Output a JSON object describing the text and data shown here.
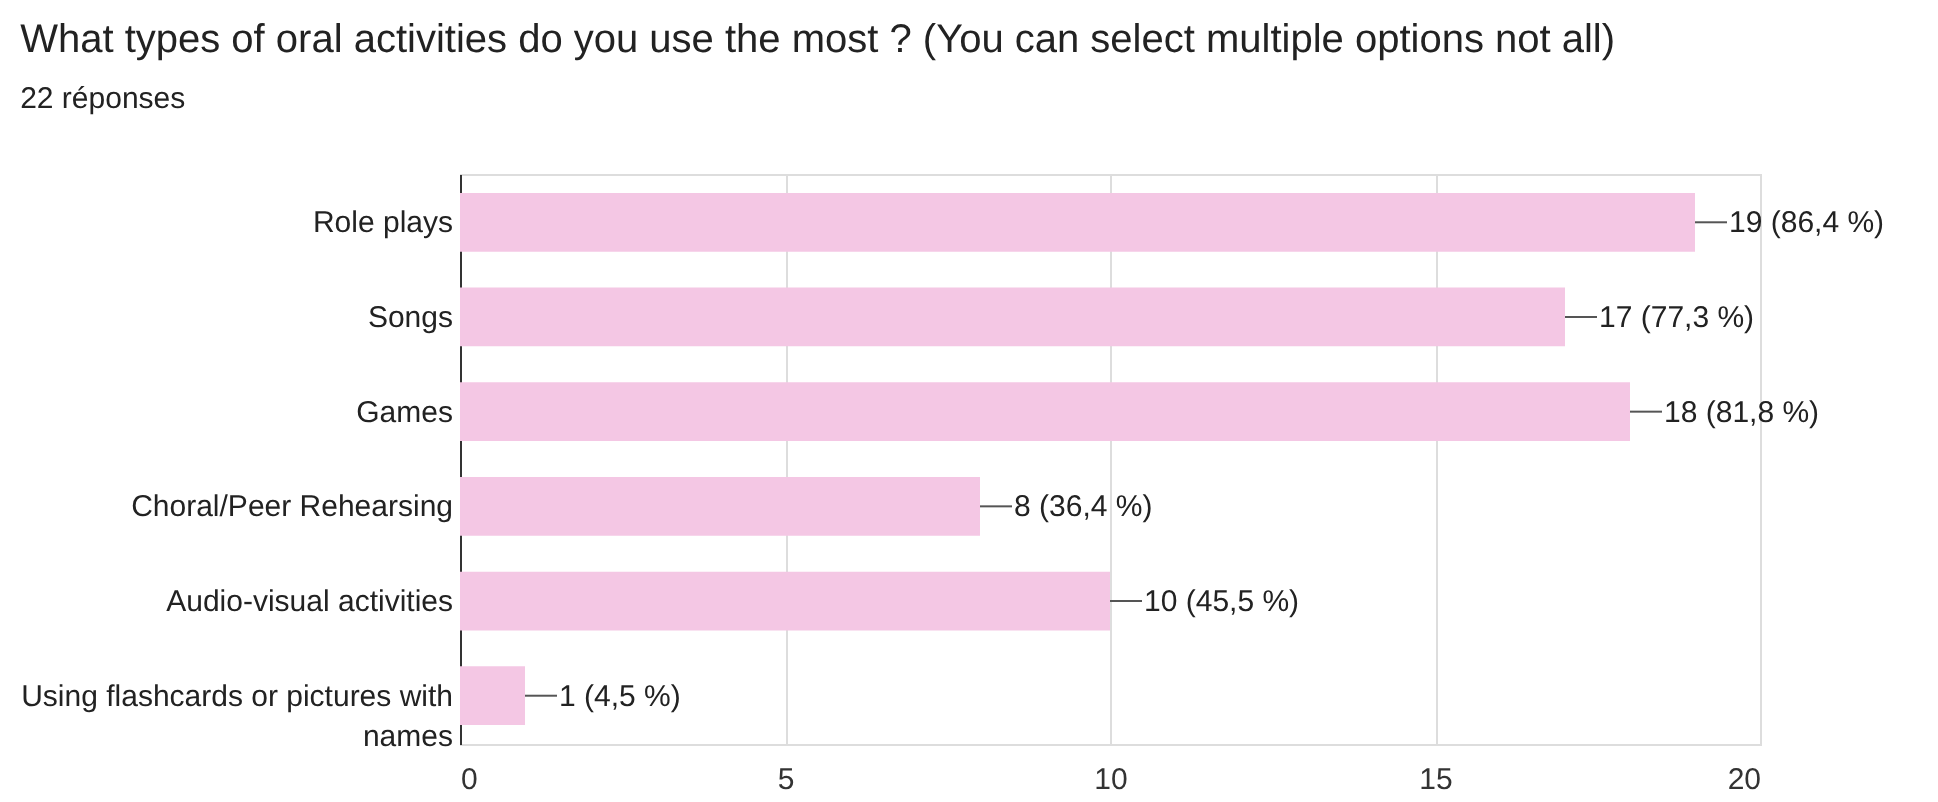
{
  "chart_data": {
    "type": "bar",
    "orientation": "horizontal",
    "title": "What types of oral activities do you use the most ? (You can select multiple options not all)",
    "subtitle": "22 réponses",
    "categories": [
      "Role plays",
      "Songs",
      "Games",
      "Choral/Peer Rehearsing",
      "Audio-visual activities",
      "Using flashcards or pictures with names"
    ],
    "values": [
      19,
      17,
      18,
      8,
      10,
      1
    ],
    "value_labels": [
      "19 (86,4 %)",
      "17 (77,3 %)",
      "18 (81,8 %)",
      "8 (36,4 %)",
      "10 (45,5 %)",
      "1 (4,5 %)"
    ],
    "color": "#f4c7e4",
    "xlim": [
      0,
      20
    ],
    "xticks": [
      0,
      5,
      10,
      15,
      20
    ],
    "grid": "x"
  }
}
